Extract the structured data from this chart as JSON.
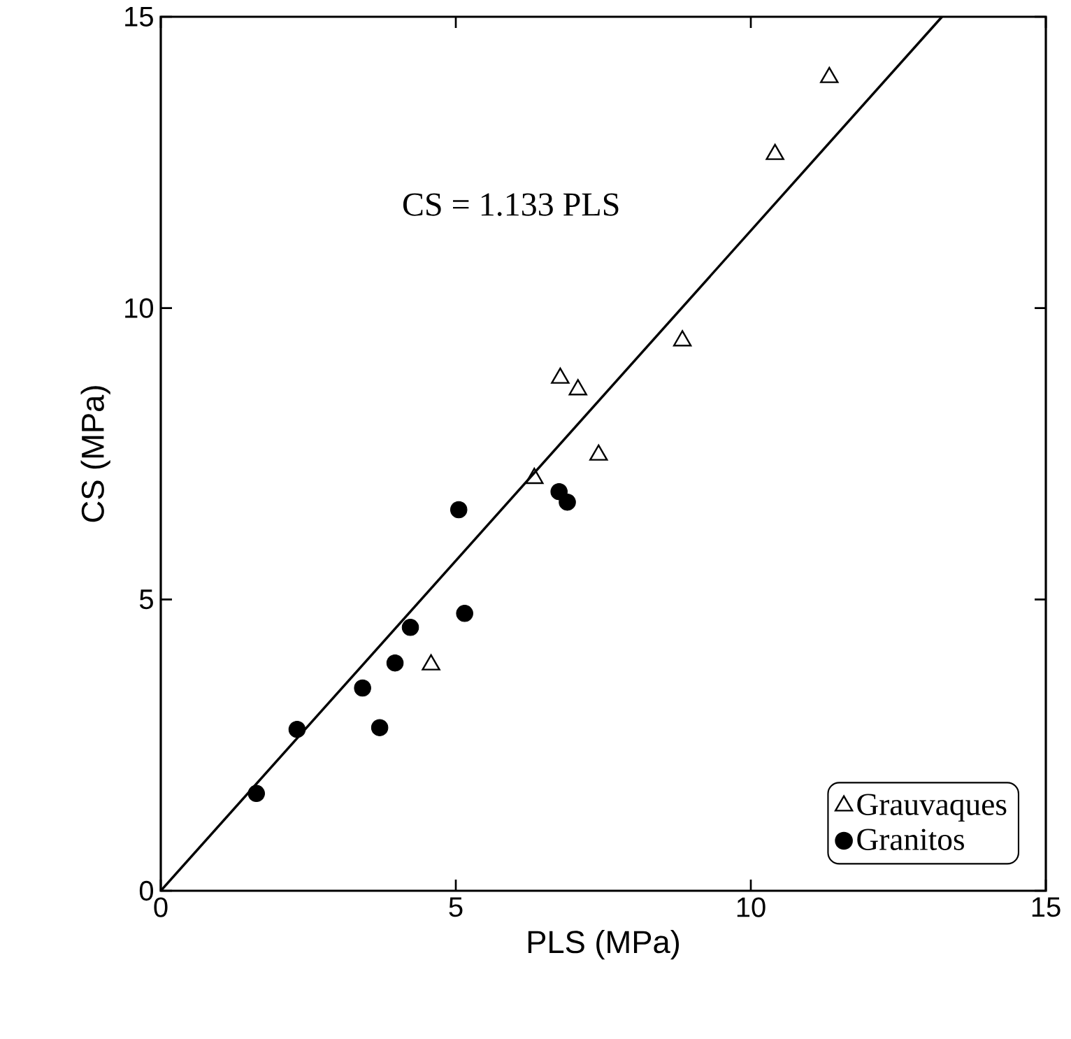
{
  "chart_data": {
    "type": "scatter",
    "xlabel": "PLS (MPa)",
    "ylabel": "CS (MPa)",
    "xlim": [
      0,
      15
    ],
    "ylim": [
      0,
      15
    ],
    "xticks": [
      0,
      5,
      10,
      15
    ],
    "yticks": [
      0,
      5,
      10,
      15
    ],
    "grid": false,
    "legend": "bottom right",
    "annotations": [
      "CS = 1.133 PLS"
    ],
    "series": [
      {
        "name": "Grauvaques",
        "color": "#000000",
        "marker": "triangle",
        "x": [
          4.58,
          6.33,
          7.42,
          6.77,
          7.07,
          8.84,
          10.41,
          11.33
        ],
        "values": [
          3.88,
          7.08,
          7.48,
          8.8,
          8.6,
          9.44,
          12.64,
          13.96
        ]
      },
      {
        "name": "Granitos",
        "color": "#000000",
        "marker": "circle",
        "x": [
          1.62,
          2.31,
          3.71,
          3.42,
          3.97,
          4.23,
          5.15,
          5.05,
          6.89,
          6.75
        ],
        "values": [
          1.67,
          2.77,
          2.8,
          3.48,
          3.91,
          4.52,
          4.76,
          6.54,
          6.67,
          6.85
        ]
      },
      {
        "type": "line",
        "color": "#000000",
        "marker": "none",
        "x": [
          0,
          13.24
        ],
        "values": [
          0,
          15
        ]
      }
    ]
  }
}
